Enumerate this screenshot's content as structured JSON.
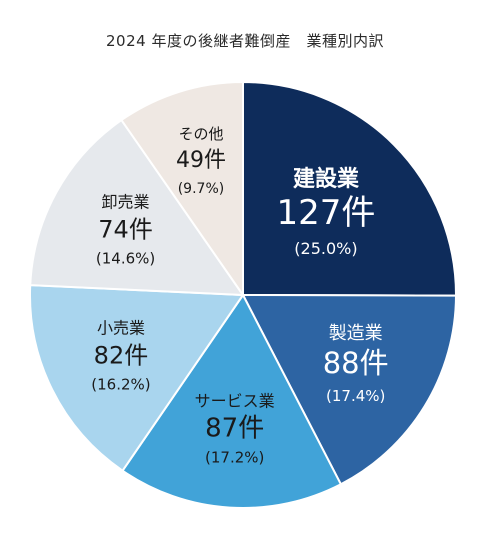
{
  "chart_data": {
    "type": "pie",
    "title": "2024 年度の後継者難倒産　業種別内訳",
    "slices": [
      {
        "name": "建設業",
        "count": "127件",
        "pct": "(25.0%)",
        "value": 127,
        "percent": 25.0,
        "color": "#0e2c5b",
        "text_color": "#ffffff"
      },
      {
        "name": "製造業",
        "count": "88件",
        "pct": "(17.4%)",
        "value": 88,
        "percent": 17.4,
        "color": "#2d64a3",
        "text_color": "#ffffff"
      },
      {
        "name": "サービス業",
        "count": "87件",
        "pct": "(17.2%)",
        "value": 87,
        "percent": 17.2,
        "color": "#41a3d8",
        "text_color": "#1a1a1a"
      },
      {
        "name": "小売業",
        "count": "82件",
        "pct": "(16.2%)",
        "value": 82,
        "percent": 16.2,
        "color": "#a9d5ee",
        "text_color": "#1a1a1a"
      },
      {
        "name": "卸売業",
        "count": "74件",
        "pct": "(14.6%)",
        "value": 74,
        "percent": 14.6,
        "color": "#e6e9ed",
        "text_color": "#1a1a1a"
      },
      {
        "name": "その他",
        "count": "49件",
        "pct": "(9.7%)",
        "value": 49,
        "percent": 9.7,
        "color": "#efe8e3",
        "text_color": "#1a1a1a"
      }
    ]
  }
}
